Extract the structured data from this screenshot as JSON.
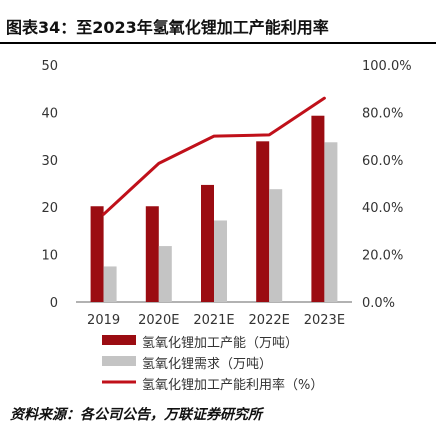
{
  "header": {
    "title": "图表34：至2023年氢氧化锂加工产能利用率"
  },
  "source": "资料来源：各公司公告，万联证券研究所",
  "chart_data": {
    "type": "bar",
    "categories": [
      "2019",
      "2020E",
      "2021E",
      "2022E",
      "2023E"
    ],
    "series": [
      {
        "name": "氢氧化锂加工产能（万吨）",
        "type": "bar",
        "axis": "left",
        "color": "#9b0c12",
        "values": [
          20.2,
          20.2,
          24.7,
          33.9,
          39.3
        ]
      },
      {
        "name": "氢氧化锂需求（万吨）",
        "type": "bar",
        "axis": "left",
        "color": "#c4c4c4",
        "values": [
          7.5,
          11.8,
          17.2,
          23.8,
          33.7
        ]
      },
      {
        "name": "氢氧化锂加工产能利用率（%）",
        "type": "line",
        "axis": "right",
        "color": "#c0101a",
        "values": [
          37.0,
          58.5,
          70.0,
          70.5,
          86.0
        ]
      }
    ],
    "y_left": {
      "min": 0,
      "max": 50,
      "ticks": [
        "0",
        "10",
        "20",
        "30",
        "40",
        "50"
      ]
    },
    "y_right": {
      "min": 0,
      "max": 100,
      "ticks": [
        "0.0%",
        "20.0%",
        "40.0%",
        "60.0%",
        "80.0%",
        "100.0%"
      ]
    },
    "grid": false,
    "legend": "bottom"
  }
}
